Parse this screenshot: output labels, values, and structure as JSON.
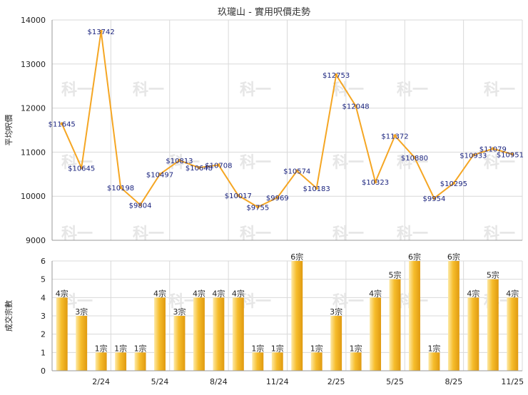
{
  "title": "玖瓏山 - 實用呎價走勢",
  "colors": {
    "line": "#f5a623",
    "bar_light": "#fde9a6",
    "bar_mid": "#f6bd2c",
    "bar_dark": "#e09a10",
    "grid": "#d9d9d9",
    "label": "#1a237e"
  },
  "watermark": "科一",
  "chart_data": [
    {
      "type": "line",
      "ylabel": "平均呎價",
      "ylim": [
        9000,
        14000
      ],
      "yticks": [
        9000,
        10000,
        11000,
        12000,
        13000,
        14000
      ],
      "grid": true,
      "values": [
        11645,
        10645,
        13742,
        10198,
        9804,
        10497,
        10813,
        10648,
        10708,
        10017,
        9755,
        9969,
        10574,
        10183,
        12753,
        12048,
        10323,
        11372,
        10880,
        9954,
        10295,
        10933,
        11079,
        10951
      ],
      "data_labels": [
        "$11645",
        "$10645",
        "$13742",
        "$10198",
        "$9804",
        "$10497",
        "$10813",
        "$10648",
        "$10708",
        "$10017",
        "$9755",
        "$9969",
        "$10574",
        "$10183",
        "$12753",
        "$12048",
        "$10323",
        "$11372",
        "$10880",
        "$9954",
        "$10295",
        "$10933",
        "$11079",
        "$10951"
      ]
    },
    {
      "type": "bar",
      "ylabel": "成交宗數",
      "ylim": [
        0,
        6
      ],
      "yticks": [
        0,
        1,
        2,
        3,
        4,
        5,
        6
      ],
      "grid": true,
      "x_tick_labels": [
        "2/24",
        "5/24",
        "8/24",
        "11/24",
        "2/25",
        "5/25",
        "8/25",
        "11/25"
      ],
      "x_tick_positions": [
        3,
        6,
        9,
        12,
        15,
        18,
        21,
        24
      ],
      "values": [
        4,
        3,
        1,
        1,
        1,
        4,
        3,
        4,
        4,
        4,
        1,
        1,
        6,
        1,
        3,
        1,
        4,
        5,
        6,
        1,
        6,
        4,
        5,
        4
      ],
      "data_labels": [
        "4宗",
        "3宗",
        "1宗",
        "1宗",
        "1宗",
        "4宗",
        "3宗",
        "4宗",
        "4宗",
        "4宗",
        "1宗",
        "1宗",
        "6宗",
        "1宗",
        "3宗",
        "1宗",
        "4宗",
        "5宗",
        "6宗",
        "1宗",
        "6宗",
        "4宗",
        "5宗",
        "4宗"
      ]
    }
  ]
}
